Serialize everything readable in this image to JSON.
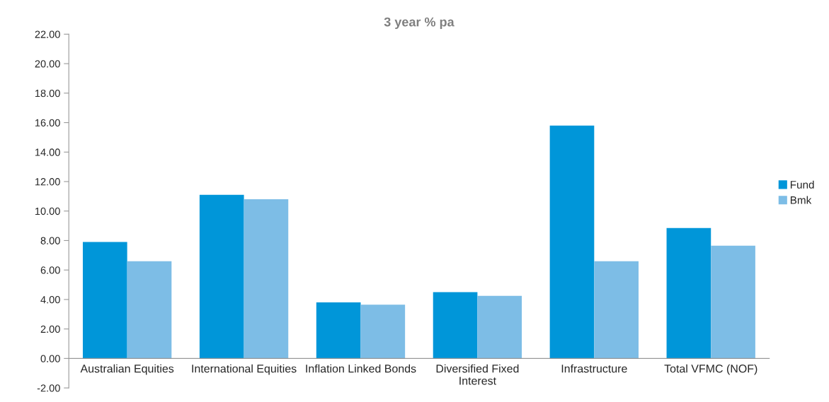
{
  "chart_data": {
    "type": "bar",
    "title": "3 year % pa",
    "categories": [
      "Australian Equities",
      "International Equities",
      "Inflation Linked Bonds",
      "Diversified Fixed\nInterest",
      "Infrastructure",
      "Total VFMC (NOF)"
    ],
    "series": [
      {
        "name": "Fund",
        "color": "#0096d9",
        "values": [
          7.9,
          11.1,
          3.8,
          4.5,
          15.8,
          8.85
        ]
      },
      {
        "name": "Bmk",
        "color": "#7dbde6",
        "values": [
          6.6,
          10.8,
          3.65,
          4.25,
          6.6,
          7.65
        ]
      }
    ],
    "ylim": [
      -2,
      22
    ],
    "yticks": [
      {
        "value": -2,
        "label": "-2.00"
      },
      {
        "value": 0,
        "label": "0.00"
      },
      {
        "value": 2,
        "label": "2.00"
      },
      {
        "value": 4,
        "label": "4.00"
      },
      {
        "value": 6,
        "label": "6.00"
      },
      {
        "value": 8,
        "label": "8.00"
      },
      {
        "value": 10,
        "label": "10.00"
      },
      {
        "value": 12,
        "label": "12.00"
      },
      {
        "value": 14,
        "label": "14.00"
      },
      {
        "value": 16,
        "label": "16.00"
      },
      {
        "value": 18,
        "label": "18.00"
      },
      {
        "value": 20,
        "label": "20.00"
      },
      {
        "value": 22,
        "label": "22.00"
      }
    ],
    "grid": false,
    "legend": "right"
  }
}
